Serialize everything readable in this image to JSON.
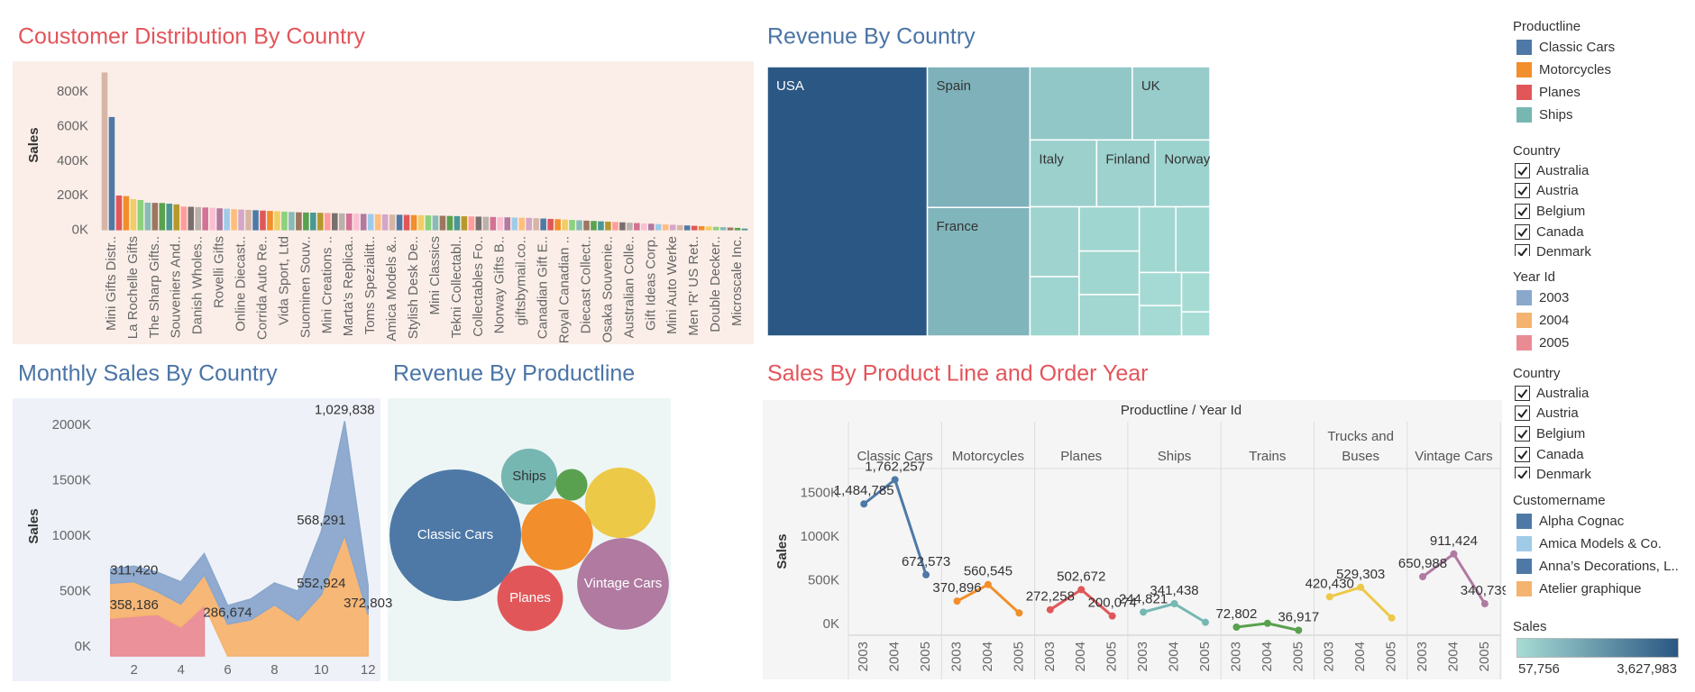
{
  "chart_data": [
    {
      "type": "bar",
      "title": "Coustomer Distribution By Country",
      "ylabel": "Sales",
      "categories": [
        null,
        "Mini Gifts Distr..",
        null,
        null,
        "La Rochelle Gifts",
        null,
        null,
        "The Sharp Gifts..",
        null,
        null,
        "Souveniers And..",
        null,
        null,
        "Danish Wholes..",
        null,
        null,
        "Rovelli Gifts",
        null,
        null,
        "Online Diecast..",
        null,
        null,
        "Corrida Auto Re..",
        null,
        null,
        "Vida Sport, Ltd",
        null,
        null,
        "Suominen Souv..",
        null,
        null,
        "Mini Creations ..",
        null,
        null,
        "Marta's Replica..",
        null,
        null,
        "Toms Spezialitt..",
        null,
        null,
        "Amica Models &..",
        null,
        null,
        "Stylish Desk De..",
        null,
        null,
        "Mini Classics",
        null,
        null,
        "Tekni Collectabl..",
        null,
        null,
        "Collectables Fo..",
        null,
        null,
        "Norway Gifts B..",
        null,
        null,
        "giftsbymail.co..",
        null,
        null,
        "Canadian Gift E..",
        null,
        null,
        "Royal Canadian ..",
        null,
        null,
        "Diecast Collect..",
        null,
        null,
        "Osaka Souvenie..",
        null,
        null,
        "Australian Colle..",
        null,
        null,
        "Gift Ideas Corp.",
        null,
        null,
        "Mini Auto Werke",
        null,
        null,
        "Men 'R' US Ret..",
        null,
        null,
        "Double Decker..",
        null,
        null,
        "Microscale Inc.",
        null
      ],
      "values": [
        912294,
        654858,
        200995,
        197737,
        180125,
        175000,
        160010,
        158573,
        157807,
        153996,
        149882,
        137034,
        136000,
        134000,
        132000,
        130000,
        127000,
        125000,
        122000,
        120000,
        118000,
        116000,
        114000,
        112000,
        110000,
        108000,
        106000,
        104000,
        103000,
        102000,
        101000,
        100000,
        99000,
        98000,
        97000,
        96000,
        95000,
        94000,
        93000,
        92000,
        91000,
        90000,
        89000,
        88000,
        87000,
        86000,
        85000,
        84000,
        83000,
        82000,
        81000,
        80000,
        79000,
        78000,
        77000,
        76000,
        75000,
        74000,
        73000,
        72000,
        70000,
        68000,
        66000,
        64000,
        62000,
        60000,
        58000,
        56000,
        54000,
        52000,
        50000,
        48000,
        46000,
        44000,
        42000,
        40000,
        38000,
        36000,
        34000,
        32000,
        30000,
        28000,
        26000,
        24000,
        22000,
        20000,
        18000,
        16000,
        14000,
        10000
      ],
      "palette": [
        "#d7b5a6",
        "#4e79a7",
        "#e15759",
        "#f28e2b",
        "#f1ce63",
        "#8cd17d",
        "#86bcb6",
        "#9d7660",
        "#59a14f",
        "#499894",
        "#b6992d",
        "#ff9d9a",
        "#79706e",
        "#bab0ac",
        "#d37295",
        "#fabfd2",
        "#b07aa1",
        "#a0cbe8",
        "#ffbe7d",
        "#d4a6c8"
      ],
      "ylim": [
        0,
        977000
      ],
      "yticks": [
        {
          "value": 0,
          "label": "0K"
        },
        {
          "value": 200000,
          "label": "200K"
        },
        {
          "value": 400000,
          "label": "400K"
        },
        {
          "value": 600000,
          "label": "600K"
        },
        {
          "value": 800000,
          "label": "800K"
        }
      ]
    },
    {
      "type": "treemap",
      "title": "Revenue By Country",
      "categories": [
        "USA",
        "Spain",
        "France",
        null,
        "UK",
        "Italy",
        "Finland",
        "Norway",
        null,
        null,
        null,
        null,
        null,
        null,
        null,
        null,
        null,
        null,
        null
      ],
      "values": [
        3627983,
        1215686,
        1110917,
        630623,
        478880,
        374674,
        329581,
        307463,
        288488,
        245637,
        224078,
        220472,
        210014,
        202062,
        188167,
        117713,
        108412,
        94015,
        57756
      ]
    },
    {
      "type": "area",
      "title": "Monthly Sales By Country",
      "ylabel": "Sales",
      "legend_title": "Year Id",
      "x": [
        1,
        2,
        3,
        4,
        5,
        6,
        7,
        8,
        9,
        10,
        11,
        12
      ],
      "xlim": [
        0.7,
        12.3
      ],
      "xticks": [
        2,
        4,
        6,
        8,
        10,
        12
      ],
      "ylim": [
        0,
        2260000
      ],
      "yticks": [
        {
          "value": 0,
          "label": "0K"
        },
        {
          "value": 500000,
          "label": "500K"
        },
        {
          "value": 1000000,
          "label": "1000K"
        },
        {
          "value": 1500000,
          "label": "1500K"
        },
        {
          "value": 2000000,
          "label": "2000K"
        }
      ],
      "series": [
        {
          "name": "2003",
          "color": "#8aa7cc",
          "values": [
            129754,
            140836,
            174505,
            201610,
            192673,
            168083,
            187732,
            197810,
            263974,
            568291,
            1029838,
            261876
          ],
          "value_labels": [
            null,
            null,
            null,
            null,
            null,
            null,
            null,
            null,
            null,
            "568,291",
            "1,029,838",
            null
          ]
        },
        {
          "name": "2004",
          "color": "#f5b370",
          "values": [
            316578,
            311420,
            205733,
            206148,
            273438,
            286674,
            327144,
            461501,
            320750,
            552924,
            1089048,
            372803
          ],
          "value_labels": [
            null,
            "311,420",
            null,
            null,
            null,
            "286,674",
            null,
            null,
            null,
            "552,924",
            null,
            "372,803"
          ]
        },
        {
          "name": "2005",
          "color": "#ea8b93",
          "values": [
            339543,
            358186,
            374262,
            261633,
            457861,
            null,
            null,
            null,
            null,
            null,
            null,
            null
          ],
          "value_labels": [
            null,
            "358,186",
            null,
            null,
            null,
            null,
            null,
            null,
            null,
            null,
            null,
            null
          ]
        }
      ]
    },
    {
      "type": "bubble",
      "title": "Revenue By Productline",
      "categories": [
        "Classic Cars",
        "Ships",
        null,
        null,
        null,
        "Planes",
        "Vintage Cars"
      ],
      "values": [
        3919616,
        714437,
        226243,
        1127789,
        1166388,
        975004,
        1903151
      ],
      "colors": [
        "#4e79a7",
        "#76b7b2",
        "#59a14f",
        "#edc948",
        "#f28e2b",
        "#e15759",
        "#b07aa1"
      ]
    },
    {
      "type": "line",
      "title": "Sales By Product Line and Order Year",
      "header": "Productline / Year Id",
      "ylabel": "Sales",
      "x": [
        "2003",
        "2004",
        "2005"
      ],
      "ylim": [
        -20000,
        1890000
      ],
      "yticks": [
        {
          "value": 0,
          "label": "0K"
        },
        {
          "value": 500000,
          "label": "500K"
        },
        {
          "value": 1000000,
          "label": "1000K"
        },
        {
          "value": 1500000,
          "label": "1500K"
        }
      ],
      "series": [
        {
          "name": "Classic Cars",
          "color": "#4e79a7",
          "values": [
            1484785,
            1762257,
            672573
          ],
          "value_labels": [
            "1,484,785",
            "1,762,257",
            "672,573"
          ]
        },
        {
          "name": "Motorcycles",
          "color": "#f28e2b",
          "values": [
            370896,
            560545,
            234948
          ],
          "value_labels": [
            "370,896",
            "560,545",
            null
          ]
        },
        {
          "name": "Planes",
          "color": "#e15759",
          "values": [
            272258,
            502672,
            200074
          ],
          "value_labels": [
            "272,258",
            "502,672",
            "200,074"
          ]
        },
        {
          "name": "Ships",
          "color": "#76b7b2",
          "values": [
            244821,
            341438,
            128178
          ],
          "value_labels": [
            "244,821",
            "341,438",
            null
          ]
        },
        {
          "name": "Trains",
          "color": "#59a14f",
          "values": [
            72802,
            116523,
            36917
          ],
          "value_labels": [
            "72,802",
            null,
            "36,917"
          ]
        },
        {
          "name": "Trucks and Buses",
          "color": "#edc948",
          "values": [
            420430,
            529303,
            178057
          ],
          "value_labels": [
            "420,430",
            "529,303",
            null
          ]
        },
        {
          "name": "Vintage Cars",
          "color": "#b07aa1",
          "values": [
            650988,
            911424,
            340739
          ],
          "value_labels": [
            "650,988",
            "911,424",
            "340,739"
          ]
        }
      ]
    }
  ],
  "sidebar": {
    "productline": {
      "title": "Productline",
      "items": [
        {
          "name": "Classic Cars",
          "color": "#4e79a7"
        },
        {
          "name": "Motorcycles",
          "color": "#f28e2b"
        },
        {
          "name": "Planes",
          "color": "#e15759"
        },
        {
          "name": "Ships",
          "color": "#76b7b2"
        }
      ]
    },
    "country_filter_1": {
      "title": "Country",
      "items": [
        "Australia",
        "Austria",
        "Belgium",
        "Canada",
        "Denmark"
      ]
    },
    "country_filter_2": {
      "title": "Country",
      "items": [
        "Australia",
        "Austria",
        "Belgium",
        "Canada",
        "Denmark"
      ]
    },
    "customername": {
      "title": "Customername",
      "items": [
        {
          "name": "Alpha Cognac",
          "color": "#4e79a7"
        },
        {
          "name": "Amica Models & Co.",
          "color": "#a0cbe8"
        },
        {
          "name": "Anna’s Decorations, L..",
          "color": "#4e79a7"
        },
        {
          "name": "Atelier graphique",
          "color": "#f5b370"
        }
      ]
    },
    "sales_legend": {
      "title": "Sales",
      "colors": [
        "#a6dcd4",
        "#2a5783"
      ],
      "range": [
        {
          "value": 57756,
          "label": "57,756"
        },
        {
          "value": 3627983,
          "label": "3,627,983"
        }
      ]
    }
  }
}
